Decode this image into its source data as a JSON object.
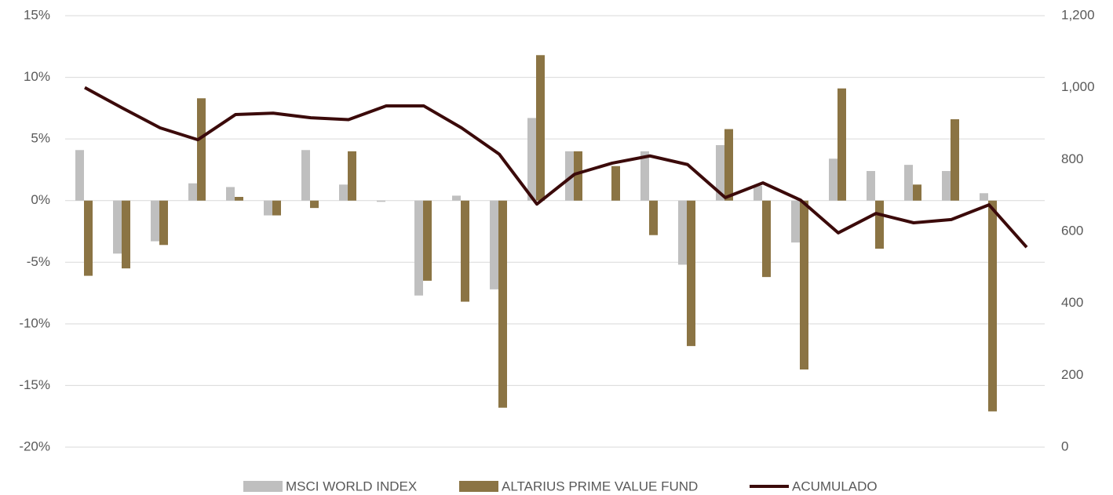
{
  "chart_data": {
    "type": "bar",
    "categories": [
      null,
      null,
      null,
      null,
      null,
      null,
      null,
      null,
      null,
      null,
      null,
      null,
      null,
      null,
      null,
      null,
      null,
      null,
      null,
      null,
      null,
      null,
      null,
      null,
      null,
      null
    ],
    "series": [
      {
        "name": "MSCI WORLD INDEX",
        "color": "#bfbfbf",
        "type": "bar",
        "values": [
          4.1,
          -4.3,
          -3.3,
          1.4,
          1.1,
          -1.2,
          4.1,
          1.3,
          -0.1,
          -7.7,
          0.4,
          -7.2,
          6.7,
          4.0,
          0,
          4.0,
          -5.2,
          4.5,
          1.2,
          -3.4,
          3.4,
          2.4,
          2.9,
          2.4,
          0.6,
          null
        ]
      },
      {
        "name": "ALTARIUS PRIME VALUE FUND",
        "color": "#8b7444",
        "type": "bar",
        "values": [
          -6.1,
          -5.5,
          -3.6,
          8.3,
          0.3,
          -1.2,
          -0.6,
          4.0,
          0,
          -6.5,
          -8.2,
          -16.8,
          11.8,
          4.0,
          2.8,
          -2.8,
          -11.8,
          5.8,
          -6.2,
          -13.7,
          9.1,
          -3.9,
          1.3,
          6.6,
          -17.1,
          null
        ]
      },
      {
        "name": "ACUMULADO",
        "color": "#3b0a0a",
        "type": "line",
        "axis": "y2",
        "values": [
          1000,
          943,
          888,
          855,
          925,
          929,
          916,
          911,
          949,
          949,
          888,
          815,
          676,
          759,
          790,
          810,
          786,
          694,
          735,
          687,
          596,
          650,
          624,
          633,
          674,
          556
        ]
      }
    ],
    "ylim": [
      -20,
      15
    ],
    "yticks": [
      {
        "value": -20,
        "label": "-20%"
      },
      {
        "value": -15,
        "label": "-15%"
      },
      {
        "value": -10,
        "label": "-10%"
      },
      {
        "value": -5,
        "label": "-5%"
      },
      {
        "value": 0,
        "label": "0%"
      },
      {
        "value": 5,
        "label": "5%"
      },
      {
        "value": 10,
        "label": "10%"
      },
      {
        "value": 15,
        "label": "15%"
      }
    ],
    "y2lim": [
      0,
      1200
    ],
    "y2ticks": [
      0,
      200,
      400,
      600,
      800,
      {
        "value": 1000,
        "label": "1,000"
      },
      {
        "value": 1200,
        "label": "1,200"
      }
    ],
    "grid": true,
    "legend": "bottom"
  }
}
